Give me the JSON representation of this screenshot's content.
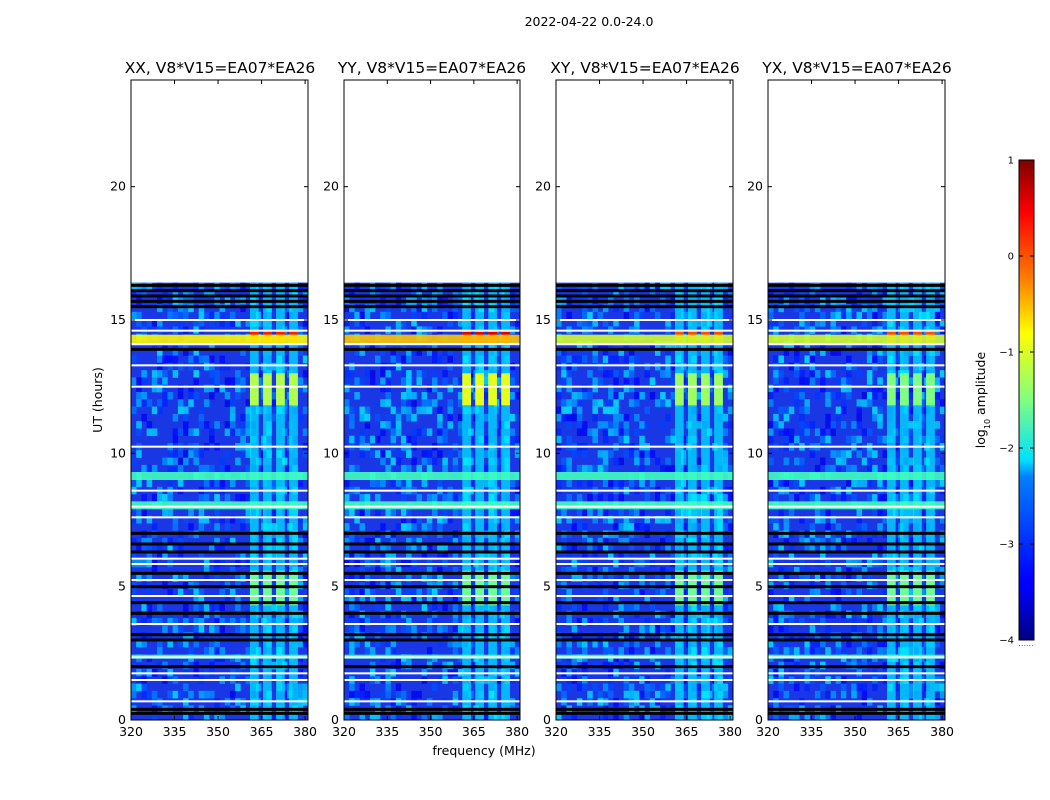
{
  "figure": {
    "title": "2022-04-22 0.0-24.0",
    "xlabel": "frequency (MHz)",
    "ylabel": "UT (hours)"
  },
  "colorbar": {
    "label_prefix": "log",
    "label_subscript": "10",
    "label_suffix": " amplitude",
    "range": [
      -4,
      1
    ],
    "ticks": [
      1,
      0,
      -1,
      -2,
      -3,
      -4
    ],
    "tick_labels": [
      "1",
      "0",
      "−1",
      "−2",
      "−3",
      "−4"
    ],
    "colormap": "jet"
  },
  "chart_data": {
    "type": "heatmap",
    "xlim": [
      320,
      381
    ],
    "ylim": [
      0,
      24
    ],
    "x_ticks": [
      320,
      335,
      350,
      365,
      380
    ],
    "x_tick_labels": [
      "320",
      "335",
      "350",
      "365",
      "380"
    ],
    "y_ticks": [
      0,
      5,
      10,
      15,
      20
    ],
    "y_tick_labels": [
      "0",
      "5",
      "10",
      "15",
      "20"
    ],
    "panels": [
      {
        "name": "xx",
        "title": "XX, V8*V15=EA07*EA26",
        "flare_level": 0.85,
        "strip_level": 0.7
      },
      {
        "name": "yy",
        "title": "YY, V8*V15=EA07*EA26",
        "flare_level": 0.9,
        "strip_level": 0.75
      },
      {
        "name": "xy",
        "title": "XY, V8*V15=EA07*EA26",
        "flare_level": 0.8,
        "strip_level": 0.68
      },
      {
        "name": "yx",
        "title": "YX, V8*V15=EA07*EA26",
        "flare_level": 0.8,
        "strip_level": 0.65
      }
    ],
    "data_end_hour": 16.4,
    "rfi_channels_mhz": [
      [
        361,
        364
      ],
      [
        365.5,
        368.5
      ],
      [
        370,
        373
      ],
      [
        374.5,
        377.5
      ]
    ],
    "white_gap_hours": [
      0.7,
      1.5,
      1.75,
      2.35,
      3.6,
      4.65,
      5.25,
      5.85,
      6.05,
      7.6,
      8.0,
      8.6,
      10.25,
      12.5,
      13.3,
      14.1,
      14.6,
      15.0
    ],
    "black_gap_hours": [
      0.25,
      0.4,
      2.0,
      3.0,
      3.2,
      4.0,
      4.4,
      5.0,
      5.5,
      6.3,
      6.6,
      7.0,
      13.9,
      15.5,
      15.7,
      15.9,
      16.1,
      16.3
    ],
    "bright_band_hours": [
      [
        14.05,
        14.45
      ],
      [
        9.0,
        9.3
      ],
      [
        7.9,
        8.2
      ],
      [
        2.3,
        2.45
      ]
    ]
  }
}
